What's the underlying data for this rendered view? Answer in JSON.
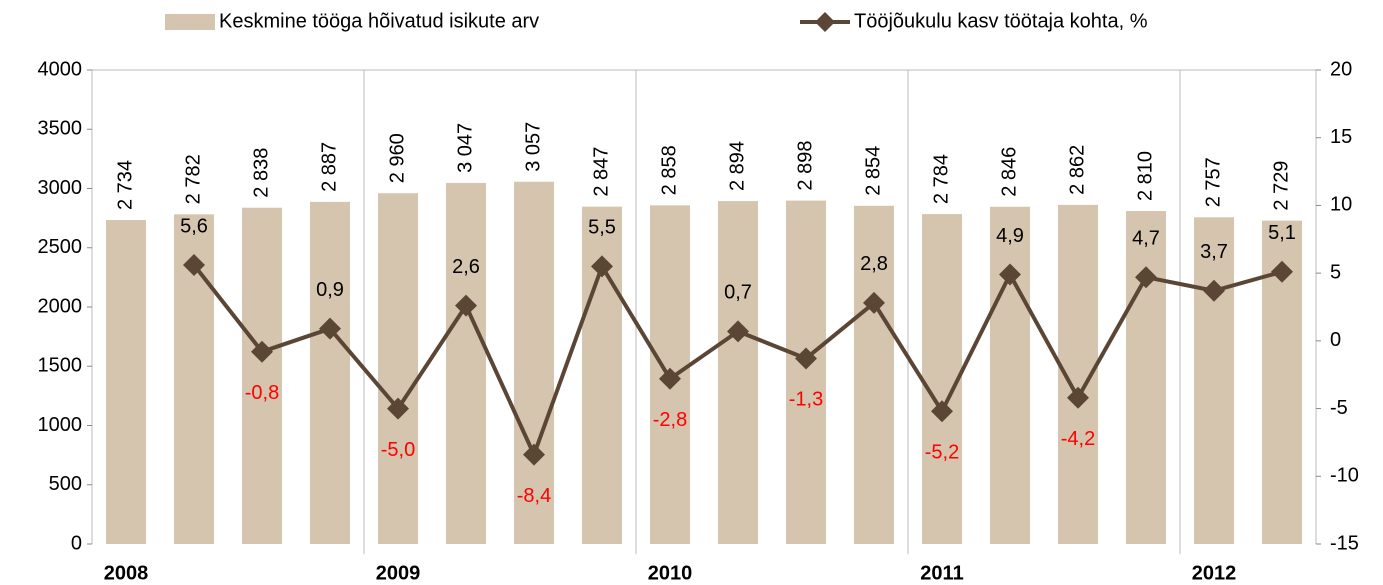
{
  "chart_data": {
    "type": "bar+line",
    "categories": [
      "2008",
      null,
      null,
      null,
      "2009",
      null,
      null,
      null,
      "2010",
      null,
      null,
      null,
      "2011",
      null,
      null,
      null,
      "2012",
      null
    ],
    "series": [
      {
        "name": "Keskmine tööga hõivatud isikute arv",
        "type": "bar",
        "color": "#d5c5ae",
        "values": [
          2734,
          2782,
          2838,
          2887,
          2960,
          3047,
          3057,
          2847,
          2858,
          2894,
          2898,
          2854,
          2784,
          2846,
          2862,
          2810,
          2757,
          2729
        ],
        "value_labels": [
          "2 734",
          "2 782",
          "2 838",
          "2 887",
          "2 960",
          "3 047",
          "3 057",
          "2 847",
          "2 858",
          "2 894",
          "2 898",
          "2 854",
          "2 784",
          "2 846",
          "2 862",
          "2 810",
          "2 757",
          "2 729"
        ]
      },
      {
        "name": "Tööjõukulu kasv töötaja kohta, %",
        "type": "line",
        "axis": "y2",
        "color": "#5b4636",
        "values": [
          null,
          5.6,
          -0.8,
          0.9,
          -5.0,
          2.6,
          -8.4,
          5.5,
          -2.8,
          0.7,
          -1.3,
          2.8,
          -5.2,
          4.9,
          -4.2,
          4.7,
          3.7,
          5.1
        ],
        "value_labels": [
          null,
          "5,6",
          "-0,8",
          "0,9",
          "-5,0",
          "2,6",
          "-8,4",
          "5,5",
          "-2,8",
          "0,7",
          "-1,3",
          "2,8",
          "-5,2",
          "4,9",
          "-4,2",
          "4,7",
          "3,7",
          "5,1"
        ]
      }
    ],
    "ylim": [
      0,
      4000
    ],
    "yticks": [
      0,
      500,
      1000,
      1500,
      2000,
      2500,
      3000,
      3500,
      4000
    ],
    "y2lim": [
      -15,
      20
    ],
    "y2ticks": [
      -15,
      -10,
      -5,
      0,
      5,
      10,
      15,
      20
    ],
    "negative_label_color": "#ff0000"
  }
}
